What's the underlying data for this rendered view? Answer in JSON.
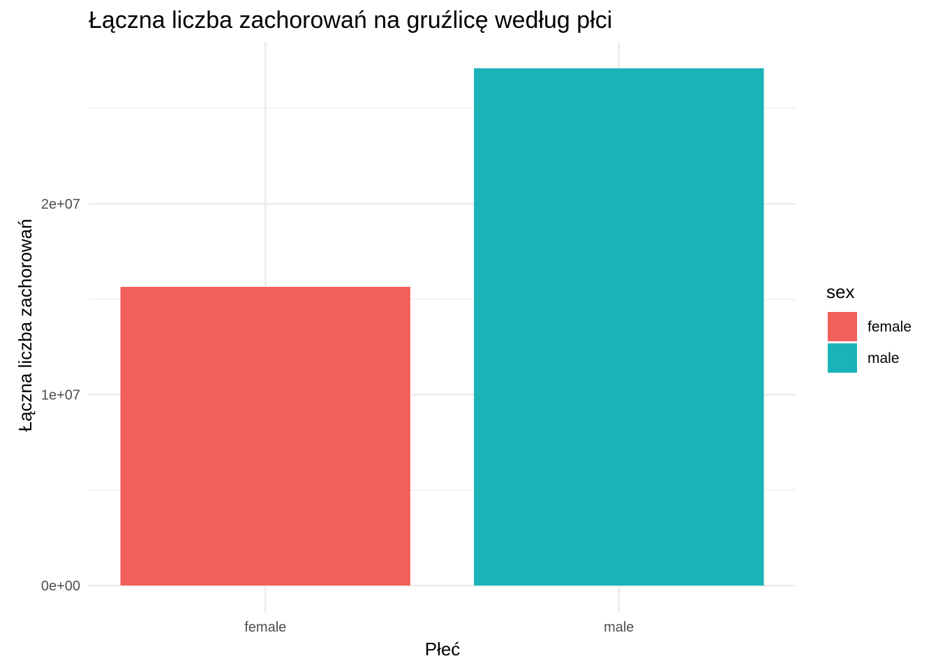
{
  "chart_data": {
    "type": "bar",
    "title": "Łączna liczba zachorowań na gruźlicę według płci",
    "xlabel": "Płeć",
    "ylabel": "Łączna liczba zachorowań",
    "categories": [
      "female",
      "male"
    ],
    "values": [
      15650000,
      27100000
    ],
    "colors": [
      "#F2605B",
      "#1AB3B7"
    ],
    "ylim": [
      0,
      28000000
    ],
    "y_ticks": [
      0,
      10000000,
      20000000
    ],
    "y_tick_labels": [
      "0e+00",
      "1e+07",
      "2e+07"
    ],
    "grid": true,
    "legend": {
      "title": "sex",
      "position": "right",
      "items": [
        {
          "label": "female",
          "color": "#F2605B"
        },
        {
          "label": "male",
          "color": "#1AB3B7"
        }
      ]
    }
  }
}
